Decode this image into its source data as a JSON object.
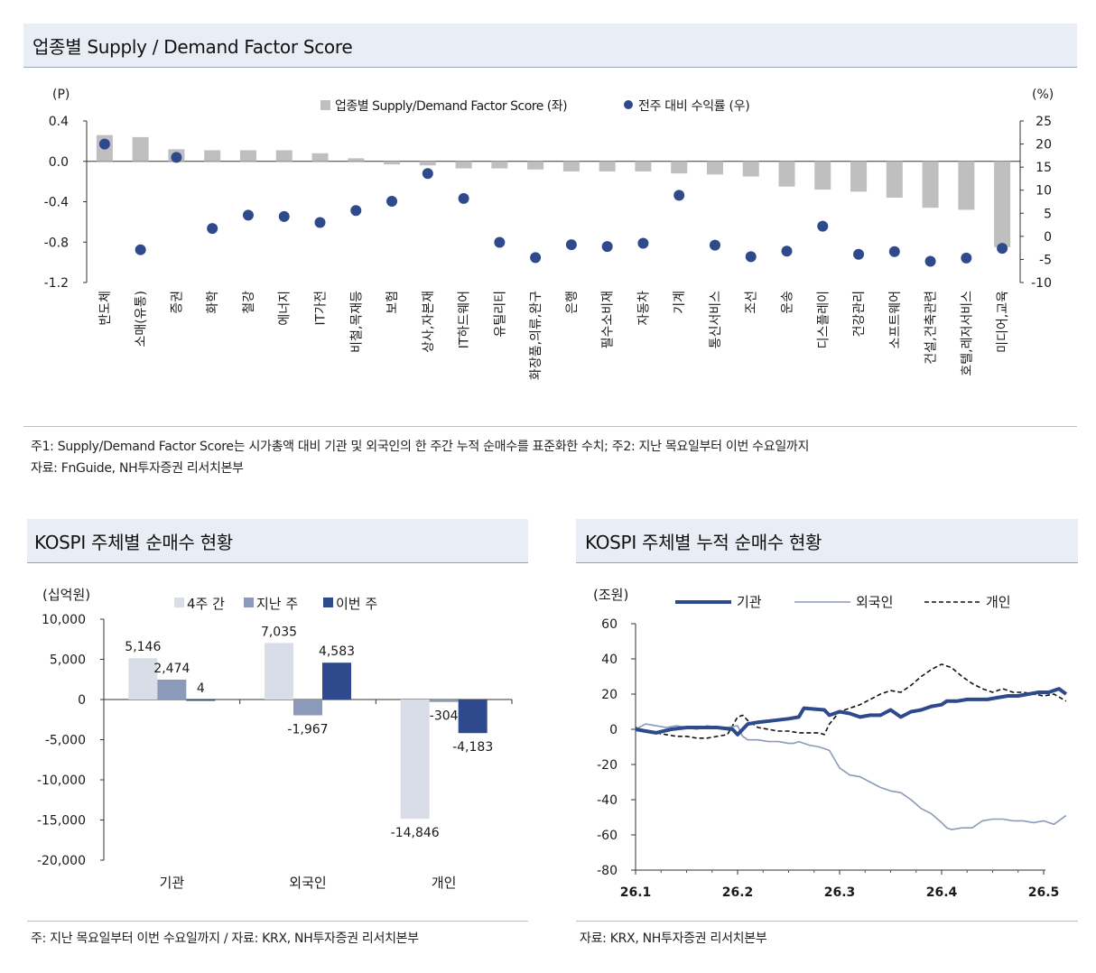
{
  "panels": {
    "top": {
      "title": "업종별  Supply / Demand Factor Score",
      "note1": "주1: Supply/Demand Factor Score는 시가총액 대비 기관 및 외국인의 한 주간 누적 순매수를 표준화한 수치; 주2: 지난 목요일부터 이번 수요일까지",
      "note2": "자료: FnGuide, NH투자증권 리서치본부"
    },
    "bottom_left": {
      "title": "KOSPI 주체별 순매수 현황",
      "note": "주: 지난 목요일부터 이번 수요일까지 / 자료: KRX, NH투자증권 리서치본부"
    },
    "bottom_right": {
      "title": "KOSPI 주체별 누적 순매수 현황",
      "note": "자료: KRX, NH투자증권 리서치본부"
    }
  },
  "chart_data": [
    {
      "type": "bar",
      "title": "업종별  Supply / Demand Factor Score",
      "left_unit": "(P)",
      "right_unit": "(%)",
      "categories": [
        "반도체",
        "소매(유통)",
        "증권",
        "화학",
        "철강",
        "에너지",
        "IT가전",
        "비철,목재등",
        "보험",
        "상사,자본재",
        "IT하드웨어",
        "유틸리티",
        "화장품,의류,완구",
        "은행",
        "필수소비재",
        "자동차",
        "기계",
        "통신서비스",
        "조선",
        "운송",
        "디스플레이",
        "건강관리",
        "소프트웨어",
        "건설,건축관련",
        "호텔,레저서비스",
        "미디어,교육"
      ],
      "series": [
        {
          "name": "업종별 Supply/Demand Factor Score (좌)",
          "axis": "left",
          "color": "#bfbfbf",
          "values": [
            0.26,
            0.24,
            0.12,
            0.11,
            0.11,
            0.11,
            0.08,
            0.03,
            -0.03,
            -0.04,
            -0.07,
            -0.07,
            -0.08,
            -0.1,
            -0.1,
            -0.1,
            -0.12,
            -0.13,
            -0.15,
            -0.25,
            -0.28,
            -0.3,
            -0.36,
            -0.46,
            -0.48,
            -0.85
          ]
        },
        {
          "name": "전주 대비 수익률 (우)",
          "axis": "right",
          "kind": "scatter",
          "color": "#2e4a8c",
          "values": [
            20.0,
            -2.9,
            17.1,
            1.7,
            4.6,
            4.3,
            3.0,
            5.6,
            7.6,
            13.6,
            8.2,
            -1.3,
            -4.6,
            -1.8,
            -2.2,
            -1.5,
            8.9,
            -1.9,
            -4.4,
            -3.2,
            2.2,
            -3.9,
            -3.3,
            -5.4,
            -4.7,
            -2.6
          ]
        }
      ],
      "ylim_left": [
        -1.2,
        0.4
      ],
      "ylim_right": [
        -10,
        25
      ],
      "yticks_left": [
        "0.4",
        "0.0",
        "-0.4",
        "-0.8",
        "-1.2"
      ],
      "yticks_right": [
        "25",
        "20",
        "15",
        "10",
        "5",
        "0",
        "-5",
        "-10"
      ],
      "legend": "top-center"
    },
    {
      "type": "bar",
      "title": "KOSPI 주체별 순매수 현황",
      "unit": "(십억원)",
      "categories": [
        "기관",
        "외국인",
        "개인"
      ],
      "series": [
        {
          "name": "4주 간",
          "color": "#d9dde7",
          "values": [
            5146,
            7035,
            -14846
          ]
        },
        {
          "name": "지난 주",
          "color": "#8c9ab9",
          "values": [
            2474,
            -1967,
            -304
          ]
        },
        {
          "name": "이번 주",
          "color": "#2e4a8c",
          "values": [
            4,
            4583,
            -4183
          ]
        }
      ],
      "data_labels": [
        [
          "5,146",
          "2,474",
          "4"
        ],
        [
          "7,035",
          "-1,967",
          "4,583"
        ],
        [
          "-14,846",
          "-304",
          "-4,183"
        ]
      ],
      "ylim": [
        -20000,
        10000
      ],
      "yticks": [
        "10,000",
        "5,000",
        "0",
        "-5,000",
        "-10,000",
        "-15,000",
        "-20,000"
      ],
      "legend": "top"
    },
    {
      "type": "line",
      "title": "KOSPI 주체별 누적 순매수 현황",
      "unit": "(조원)",
      "x_ticks": [
        "26.1",
        "26.2",
        "26.3",
        "26.4",
        "26.5"
      ],
      "xlim": [
        0,
        4.22
      ],
      "ylim": [
        -80,
        60
      ],
      "yticks": [
        "60",
        "40",
        "20",
        "0",
        "-20",
        "-40",
        "-60",
        "-80"
      ],
      "series": [
        {
          "name": "기관",
          "color": "#2e4a8c",
          "style": "solid-thick",
          "x": [
            0,
            0.1,
            0.2,
            0.35,
            0.5,
            0.65,
            0.8,
            0.95,
            1.0,
            1.1,
            1.2,
            1.35,
            1.5,
            1.6,
            1.65,
            1.85,
            1.9,
            2.0,
            2.1,
            2.2,
            2.3,
            2.4,
            2.5,
            2.6,
            2.7,
            2.8,
            2.9,
            3.0,
            3.05,
            3.15,
            3.25,
            3.35,
            3.45,
            3.55,
            3.65,
            3.75,
            3.85,
            3.95,
            4.05,
            4.15,
            4.22
          ],
          "y": [
            0,
            -1,
            -2,
            0,
            1,
            1,
            1,
            0,
            -3,
            3,
            4,
            5,
            6,
            7,
            12,
            11,
            8,
            10,
            9,
            7,
            8,
            8,
            11,
            7,
            10,
            11,
            13,
            14,
            16,
            16,
            17,
            17,
            17,
            18,
            19,
            19,
            20,
            21,
            21,
            23,
            20
          ]
        },
        {
          "name": "외국인",
          "color": "#8c9ab9",
          "style": "solid-thin",
          "x": [
            0,
            0.1,
            0.2,
            0.3,
            0.4,
            0.5,
            0.6,
            0.7,
            0.8,
            0.9,
            1.0,
            1.05,
            1.1,
            1.2,
            1.3,
            1.4,
            1.5,
            1.55,
            1.6,
            1.7,
            1.8,
            1.9,
            2.0,
            2.1,
            2.2,
            2.3,
            2.4,
            2.5,
            2.6,
            2.7,
            2.8,
            2.9,
            3.0,
            3.05,
            3.1,
            3.2,
            3.3,
            3.4,
            3.5,
            3.6,
            3.7,
            3.8,
            3.9,
            4.0,
            4.1,
            4.22
          ],
          "y": [
            0,
            3,
            2,
            1,
            2,
            1,
            0,
            2,
            1,
            1,
            2,
            -4,
            -6,
            -6,
            -7,
            -7,
            -8,
            -8,
            -7,
            -9,
            -10,
            -12,
            -22,
            -26,
            -27,
            -30,
            -33,
            -35,
            -36,
            -40,
            -45,
            -48,
            -53,
            -56,
            -57,
            -56,
            -56,
            -52,
            -51,
            -51,
            -52,
            -52,
            -53,
            -52,
            -54,
            -49
          ]
        },
        {
          "name": "개인",
          "color": "#111111",
          "style": "dashed",
          "x": [
            0,
            0.1,
            0.2,
            0.3,
            0.4,
            0.5,
            0.6,
            0.7,
            0.8,
            0.9,
            1.0,
            1.05,
            1.1,
            1.2,
            1.3,
            1.4,
            1.5,
            1.6,
            1.7,
            1.8,
            1.85,
            1.9,
            2.0,
            2.1,
            2.2,
            2.3,
            2.4,
            2.5,
            2.6,
            2.7,
            2.8,
            2.9,
            3.0,
            3.1,
            3.2,
            3.3,
            3.4,
            3.5,
            3.6,
            3.7,
            3.8,
            3.9,
            4.0,
            4.1,
            4.22
          ],
          "y": [
            1,
            -1,
            -2,
            -3,
            -4,
            -4,
            -5,
            -5,
            -4,
            -3,
            7,
            8,
            5,
            1,
            0,
            -1,
            -1,
            -2,
            -2,
            -2,
            -3,
            3,
            10,
            12,
            14,
            17,
            20,
            22,
            21,
            25,
            30,
            34,
            37,
            35,
            30,
            26,
            23,
            21,
            23,
            21,
            21,
            20,
            19,
            20,
            16
          ]
        }
      ],
      "legend": "top"
    }
  ]
}
